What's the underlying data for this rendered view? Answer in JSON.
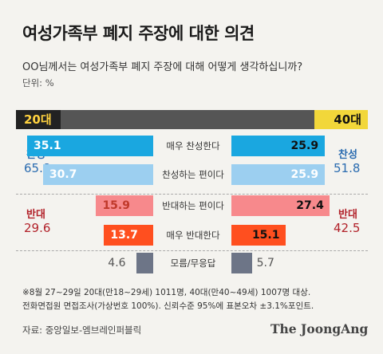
{
  "title": "여성가족부 폐지 주장에 대한 의견",
  "question": "OO님께서는 여성가족부 폐지 주장에 대해 어떻게 생각하십니까?",
  "unit": "단위: %",
  "left_header": "20대",
  "right_header": "40대",
  "groups": {
    "agree": {
      "label": "찬성",
      "left_total": "65.8",
      "right_total": "51.8",
      "color": "#2b6cb0"
    },
    "disagree": {
      "label": "반대",
      "left_total": "29.6",
      "right_total": "42.5",
      "color": "#b2222a"
    }
  },
  "footnote": "※8월 27~29일 20대(만18~29세) 1011명, 40대(만40~49세) 1007명 대상.\n전화면접원 면접조사(가상번호 100%). 신뢰수준 95%에 표본오차 ±3.1%포인트.",
  "source": "자료: 중앙일보-엠브레인퍼블릭",
  "brand": "The JoongAng",
  "colors": {
    "strong_agree": "#1aa7e0",
    "agree": "#9ccff0",
    "disagree": "#f7898c",
    "strong_disagree": "#ff4f1f",
    "undecided": "#6d7587",
    "header_20": "#ffd23f",
    "header_40": "#f2d73a"
  },
  "chart_data": {
    "type": "bar",
    "categories": [
      "매우 찬성한다",
      "찬성하는 편이다",
      "반대하는 편이다",
      "매우 반대한다",
      "모름/무응답"
    ],
    "series": [
      {
        "name": "20대",
        "values": [
          35.1,
          30.7,
          15.9,
          13.7,
          4.6
        ]
      },
      {
        "name": "40대",
        "values": [
          25.9,
          25.9,
          27.4,
          15.1,
          5.7
        ]
      }
    ],
    "value_labels": {
      "20대": [
        "35.1",
        "30.7",
        "15.9",
        "13.7",
        "4.6"
      ],
      "40대": [
        "25.9",
        "25.9",
        "27.4",
        "15.1",
        "5.7"
      ]
    },
    "xlim": [
      0,
      40
    ],
    "grid": false,
    "legend": "top"
  }
}
